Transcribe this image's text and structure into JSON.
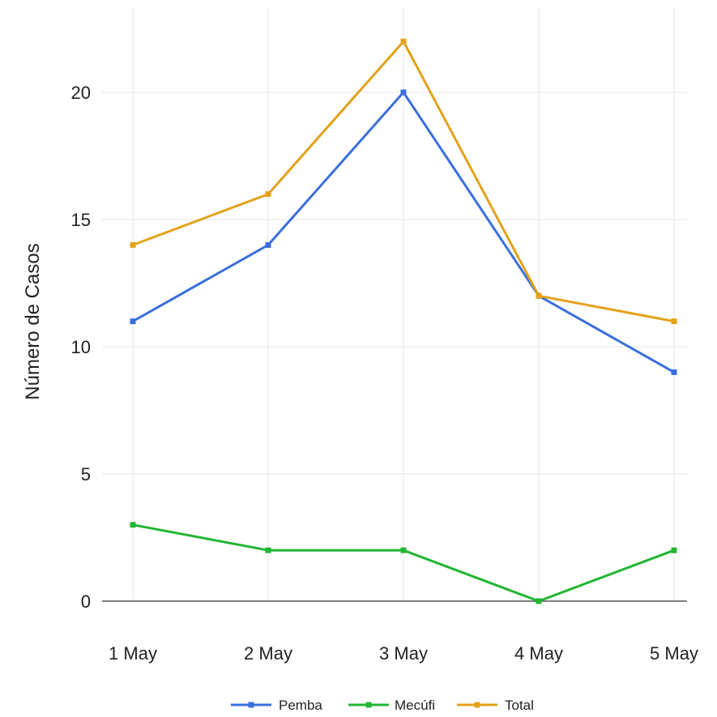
{
  "chart_data": {
    "type": "line",
    "title": "",
    "xlabel": "",
    "ylabel": "Número de Casos",
    "categories": [
      "1 May",
      "2 May",
      "3 May",
      "4 May",
      "5 May"
    ],
    "ylim": [
      0,
      22
    ],
    "yticks": [
      0,
      5,
      10,
      15,
      20
    ],
    "grid": true,
    "legend_position": "bottom",
    "series": [
      {
        "name": "Pemba",
        "color": "#3a6fdc",
        "values": [
          11,
          14,
          20,
          12,
          9
        ]
      },
      {
        "name": "Mecúfi",
        "color": "#22b533",
        "values": [
          3,
          2,
          2,
          0,
          2
        ]
      },
      {
        "name": "Total",
        "color": "#e3a21a",
        "values": [
          14,
          16,
          22,
          12,
          11
        ]
      }
    ]
  }
}
